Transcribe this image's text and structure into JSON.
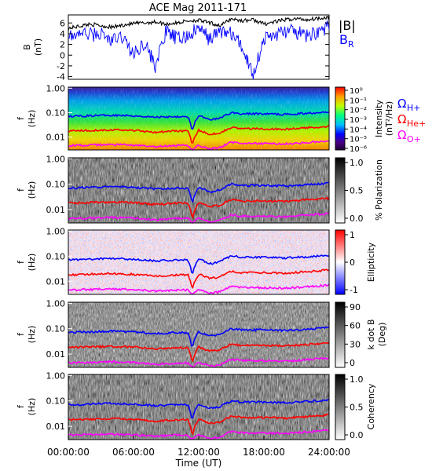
{
  "title": "ACE Mag 2011-171",
  "xlabel": "Time (UT)",
  "xticks": [
    "00:00:00",
    "06:00:00",
    "12:00:00",
    "18:00:00",
    "24:00:00"
  ],
  "colors": {
    "B_total": "#000000",
    "B_R": "#0000ff",
    "H_plus": "#0000ff",
    "He_plus": "#ff0000",
    "O_plus": "#ff00ff"
  },
  "chart_data": [
    {
      "type": "line",
      "panel": "magnetic-field",
      "ylabel": "B",
      "yunit": "(nT)",
      "ylim": [
        -4.5,
        7.5
      ],
      "yticks": [
        "-4",
        "-2",
        "0",
        "2",
        "4",
        "6"
      ],
      "xlim_hours": [
        0,
        24
      ],
      "legend": [
        "|B|",
        "B_R"
      ],
      "legend_text": {
        "total": "|B|",
        "radial": "B",
        "radial_sub": "R"
      },
      "series": [
        {
          "name": "|B|",
          "x": [
            0,
            1,
            2,
            3,
            4,
            5,
            6,
            7,
            8,
            9,
            10,
            11,
            12,
            13,
            14,
            15,
            16,
            17,
            18,
            19,
            20,
            21,
            22,
            23,
            24
          ],
          "values": [
            5.0,
            5.4,
            5.8,
            5.5,
            5.2,
            5.6,
            5.9,
            6.0,
            6.2,
            5.8,
            6.0,
            6.4,
            6.5,
            6.0,
            5.5,
            6.8,
            6.4,
            6.6,
            5.8,
            6.2,
            6.6,
            6.8,
            6.6,
            6.9,
            7.1
          ]
        },
        {
          "name": "B_R",
          "x": [
            0,
            1,
            2,
            3,
            4,
            5,
            6,
            7,
            8,
            9,
            10,
            11,
            12,
            13,
            14,
            15,
            16,
            17,
            18,
            19,
            20,
            21,
            22,
            23,
            24
          ],
          "values": [
            3.0,
            4.2,
            3.8,
            4.0,
            2.6,
            3.5,
            0.0,
            2.5,
            -2.0,
            4.4,
            3.0,
            3.5,
            5.0,
            3.0,
            4.5,
            4.0,
            1.5,
            -3.5,
            3.0,
            3.8,
            4.5,
            4.2,
            3.5,
            4.5,
            5.2
          ]
        }
      ]
    },
    {
      "type": "heatmap",
      "panel": "intensity",
      "ylabel": "f",
      "yunit": "(Hz)",
      "yscale": "log",
      "ylim": [
        0.003,
        1.1
      ],
      "yticks": [
        "1.00",
        "0.10",
        "0.01"
      ],
      "colorbar": {
        "label": "Intensity",
        "unit": "(nT²/Hz)",
        "ticks": [
          "10⁰",
          "10⁻¹",
          "10⁻²",
          "10⁻³",
          "10⁻⁴",
          "10⁻⁵",
          "10⁻⁶"
        ],
        "colormap": "rainbow"
      },
      "ion_labels": [
        {
          "symbol": "Ω",
          "sub": "H+",
          "color": "#0000ff"
        },
        {
          "symbol": "Ω",
          "sub": "He+",
          "color": "#ff0000"
        },
        {
          "symbol": "Ω",
          "sub": "O+",
          "color": "#ff00ff"
        }
      ]
    },
    {
      "type": "heatmap",
      "panel": "polarization",
      "ylabel": "f",
      "yunit": "(Hz)",
      "yscale": "log",
      "ylim": [
        0.003,
        1.1
      ],
      "yticks": [
        "1.00",
        "0.10",
        "0.01"
      ],
      "colorbar": {
        "label": "% Polarization",
        "ticks": [
          "1.0",
          "0.5",
          "0.0"
        ],
        "colormap": "gray"
      }
    },
    {
      "type": "heatmap",
      "panel": "ellipticity",
      "ylabel": "f",
      "yunit": "(Hz)",
      "yscale": "log",
      "ylim": [
        0.003,
        1.1
      ],
      "yticks": [
        "1.00",
        "0.10",
        "0.01"
      ],
      "colorbar": {
        "label": "Ellipticity",
        "ticks": [
          "1",
          "0",
          "-1"
        ],
        "colormap": "blue-white-red"
      }
    },
    {
      "type": "heatmap",
      "panel": "k-dot-b",
      "ylabel": "f",
      "yunit": "(Hz)",
      "yscale": "log",
      "ylim": [
        0.003,
        1.1
      ],
      "yticks": [
        "1.00",
        "0.10",
        "0.01"
      ],
      "colorbar": {
        "label": "k dot B",
        "unit": "(Deg)",
        "ticks": [
          "90",
          "60",
          "30",
          "0"
        ],
        "colormap": "gray"
      }
    },
    {
      "type": "heatmap",
      "panel": "coherency",
      "ylabel": "f",
      "yunit": "(Hz)",
      "yscale": "log",
      "ylim": [
        0.003,
        1.1
      ],
      "yticks": [
        "1.00",
        "0.10",
        "0.01"
      ],
      "colorbar": {
        "label": "Coherency",
        "ticks": [
          "1.0",
          "0.5",
          "0.0"
        ],
        "colormap": "gray"
      }
    },
    {
      "type": "line",
      "panel": "ion-gyrofrequencies",
      "yscale": "log",
      "note_series_shown_on": "all five spectrogram panels",
      "series": [
        {
          "name": "ΩH+",
          "x": [
            0,
            2,
            4,
            6,
            8,
            10,
            11,
            11.4,
            12,
            13,
            14,
            15,
            16,
            18,
            20,
            22,
            24
          ],
          "values": [
            0.07,
            0.075,
            0.08,
            0.075,
            0.065,
            0.07,
            0.07,
            0.015,
            0.075,
            0.05,
            0.06,
            0.1,
            0.09,
            0.09,
            0.085,
            0.095,
            0.11
          ]
        },
        {
          "name": "ΩHe+",
          "x": [
            0,
            2,
            4,
            6,
            8,
            10,
            11,
            11.4,
            12,
            13,
            14,
            15,
            16,
            18,
            20,
            22,
            24
          ],
          "values": [
            0.018,
            0.019,
            0.02,
            0.019,
            0.016,
            0.018,
            0.018,
            0.004,
            0.019,
            0.013,
            0.015,
            0.025,
            0.022,
            0.022,
            0.021,
            0.024,
            0.028
          ]
        },
        {
          "name": "ΩO+",
          "x": [
            0,
            2,
            4,
            6,
            8,
            10,
            11,
            11.4,
            12,
            13,
            14,
            15,
            16,
            18,
            20,
            22,
            24
          ],
          "values": [
            0.0045,
            0.0047,
            0.005,
            0.0047,
            0.004,
            0.0045,
            0.0045,
            0.003,
            0.0047,
            0.0033,
            0.0038,
            0.0062,
            0.0056,
            0.0055,
            0.0053,
            0.006,
            0.007
          ]
        }
      ]
    }
  ]
}
